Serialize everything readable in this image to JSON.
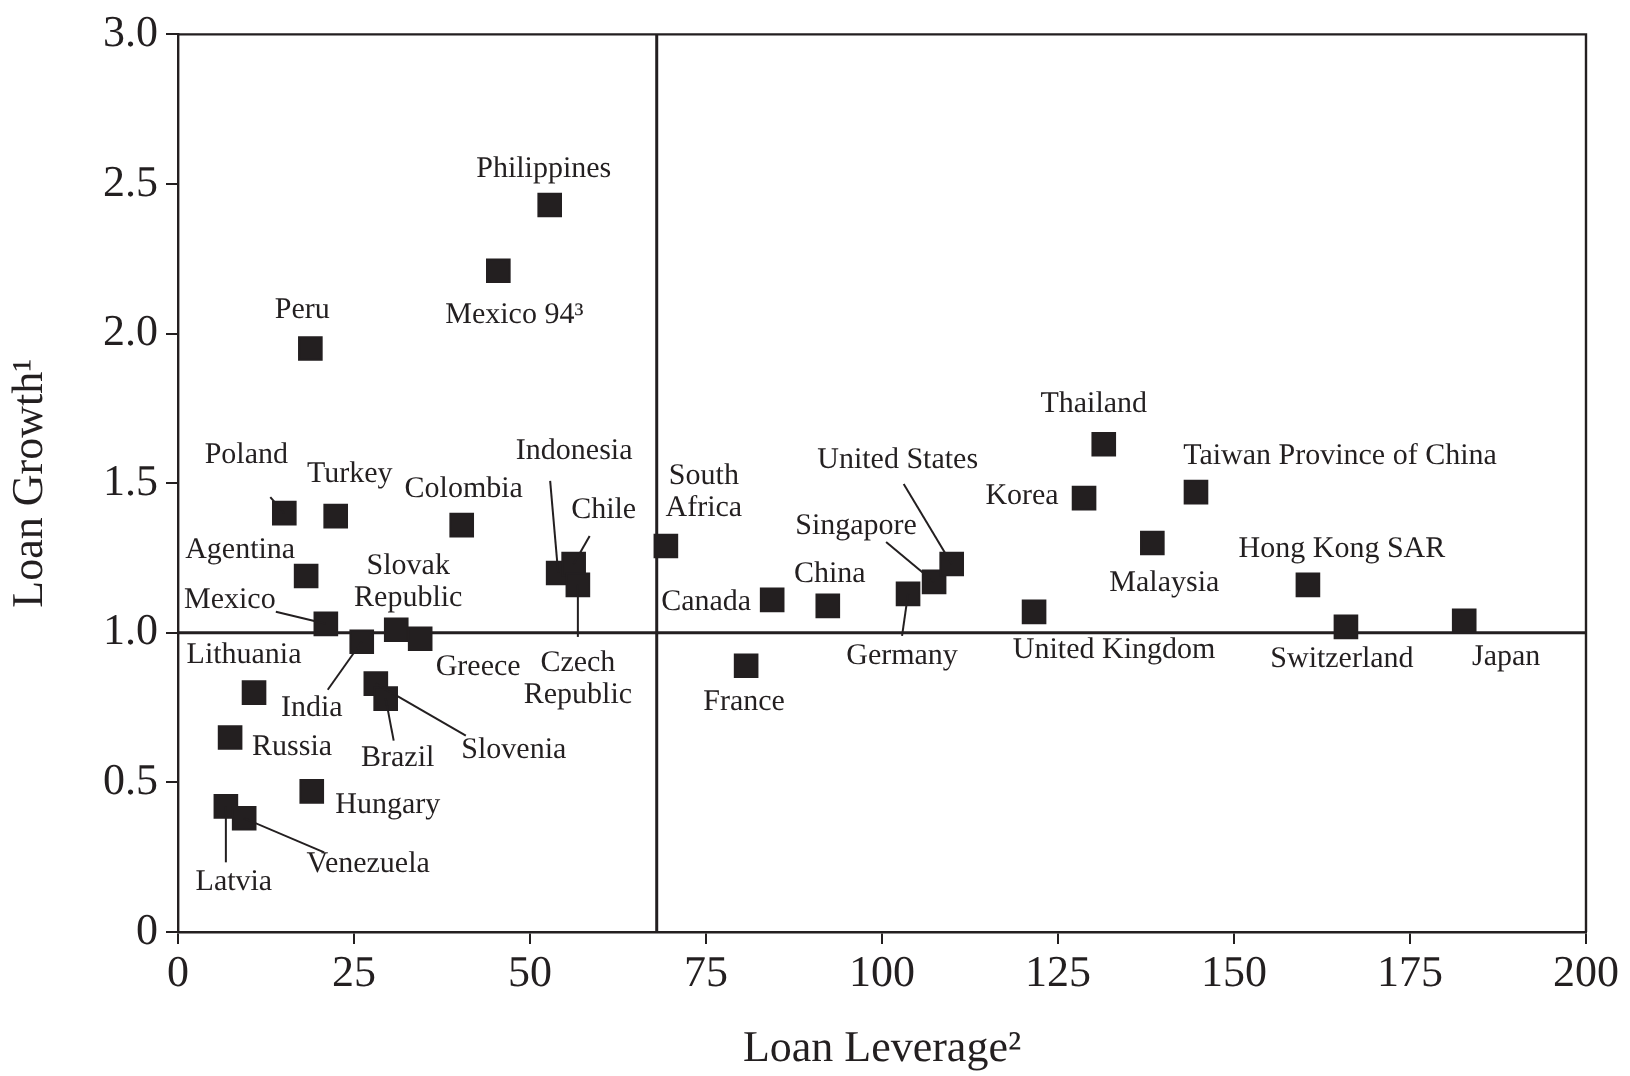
{
  "chart_data": {
    "type": "scatter",
    "xlabel": "Loan Leverage²",
    "ylabel": "Loan Growth¹",
    "xlim": [
      0,
      200
    ],
    "xticks": [
      0,
      25,
      50,
      75,
      100,
      125,
      150,
      175,
      200
    ],
    "ylim": [
      0,
      3
    ],
    "yticks": [
      0,
      0.5,
      {
        "value": 1,
        "label": "1.0"
      },
      1.5,
      {
        "value": 2,
        "label": "2.0"
      },
      2.5,
      {
        "value": 3,
        "label": "3.0"
      }
    ],
    "grid": false,
    "marker": "square",
    "ref_lines": [
      {
        "axis": "x",
        "value": 68,
        "color": "#231f20"
      },
      {
        "axis": "y",
        "value": 1,
        "color": "#231f20"
      }
    ],
    "series": [
      {
        "color": "#231f20",
        "x": [
          52.8,
          45.5,
          18.8,
          15.1,
          22.4,
          40.3,
          69.3,
          54,
          56.2,
          56.8,
          18.2,
          21,
          10.8,
          26.1,
          31,
          34.4,
          28.1,
          29.5,
          7.4,
          19,
          6.8,
          9.4,
          84.4,
          80.7,
          92.3,
          103.7,
          107.4,
          109.9,
          121.6,
          128.7,
          131.5,
          138.4,
          144.6,
          160.5,
          165.9,
          182.7
        ],
        "values": [
          2.43,
          2.21,
          1.95,
          1.4,
          1.39,
          1.36,
          1.29,
          1.2,
          1.23,
          1.16,
          1.19,
          1.03,
          0.8,
          0.97,
          1.01,
          0.98,
          0.83,
          0.78,
          0.65,
          0.47,
          0.42,
          0.38,
          1.11,
          0.89,
          1.09,
          1.13,
          1.17,
          1.23,
          1.07,
          1.45,
          1.63,
          1.3,
          1.47,
          1.16,
          1.02,
          1.04
        ]
      }
    ],
    "annotations": [
      {
        "text": "Philippines",
        "x": 52.8,
        "y": 2.43
      },
      {
        "text": "Mexico 94³",
        "x": 45.5,
        "y": 2.21
      },
      {
        "text": "Peru",
        "x": 18.8,
        "y": 1.95
      },
      {
        "text": "Poland",
        "x": 15.1,
        "y": 1.4
      },
      {
        "text": "Turkey",
        "x": 22.4,
        "y": 1.39
      },
      {
        "text": "Colombia",
        "x": 40.3,
        "y": 1.36
      },
      {
        "text": "South Africa",
        "x": 69.3,
        "y": 1.29
      },
      {
        "text": "Indonesia",
        "x": 54,
        "y": 1.2
      },
      {
        "text": "Chile",
        "x": 56.2,
        "y": 1.23
      },
      {
        "text": "Czech Republic",
        "x": 56.8,
        "y": 1.16
      },
      {
        "text": "Agentina",
        "x": 18.2,
        "y": 1.19
      },
      {
        "text": "Mexico",
        "x": 21,
        "y": 1.03
      },
      {
        "text": "Lithuania",
        "x": 10.8,
        "y": 0.8
      },
      {
        "text": "India",
        "x": 26.1,
        "y": 0.97
      },
      {
        "text": "Slovak Republic",
        "x": 31,
        "y": 1.01
      },
      {
        "text": "Greece",
        "x": 34.4,
        "y": 0.98
      },
      {
        "text": "Slovenia",
        "x": 28.1,
        "y": 0.83
      },
      {
        "text": "Brazil",
        "x": 29.5,
        "y": 0.78
      },
      {
        "text": "Russia",
        "x": 7.4,
        "y": 0.65
      },
      {
        "text": "Hungary",
        "x": 19,
        "y": 0.47
      },
      {
        "text": "Latvia",
        "x": 6.8,
        "y": 0.42
      },
      {
        "text": "Venezuela",
        "x": 9.4,
        "y": 0.38
      },
      {
        "text": "Canada",
        "x": 84.4,
        "y": 1.11
      },
      {
        "text": "France",
        "x": 80.7,
        "y": 0.89
      },
      {
        "text": "China",
        "x": 92.3,
        "y": 1.09
      },
      {
        "text": "Germany",
        "x": 103.7,
        "y": 1.13
      },
      {
        "text": "Singapore",
        "x": 107.4,
        "y": 1.17
      },
      {
        "text": "United States",
        "x": 109.9,
        "y": 1.23
      },
      {
        "text": "United Kingdom",
        "x": 121.6,
        "y": 1.07
      },
      {
        "text": "Korea",
        "x": 128.7,
        "y": 1.45
      },
      {
        "text": "Thailand",
        "x": 131.5,
        "y": 1.63
      },
      {
        "text": "Malaysia",
        "x": 138.4,
        "y": 1.3
      },
      {
        "text": "Taiwan Province of China",
        "x": 144.6,
        "y": 1.47
      },
      {
        "text": "Hong Kong SAR",
        "x": 160.5,
        "y": 1.16
      },
      {
        "text": "Switzerland",
        "x": 165.9,
        "y": 1.02
      },
      {
        "text": "Japan",
        "x": 182.7,
        "y": 1.04
      }
    ]
  }
}
